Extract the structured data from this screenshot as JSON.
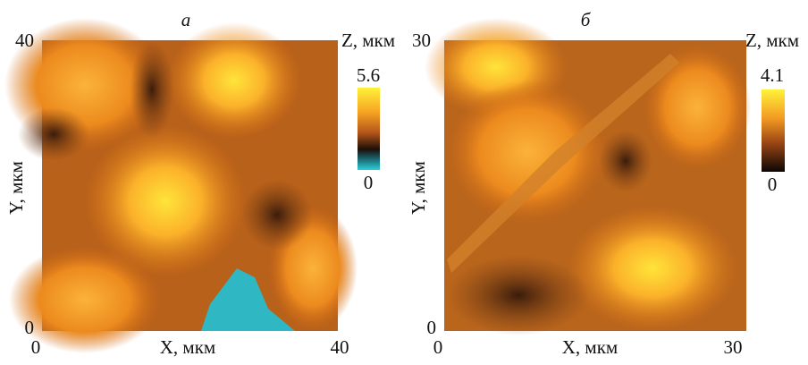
{
  "panels": [
    {
      "label": "а",
      "x_label": "X, мкм",
      "y_label": "Y, мкм",
      "x_ticks": [
        "0",
        "40"
      ],
      "y_ticks": [
        "0",
        "40"
      ],
      "colorbar": {
        "title": "Z, мкм",
        "max": "5.6",
        "min": "0"
      }
    },
    {
      "label": "б",
      "x_label": "X, мкм",
      "y_label": "Y, мкм",
      "x_ticks": [
        "0",
        "30"
      ],
      "y_ticks": [
        "0",
        "30"
      ],
      "colorbar": {
        "title": "Z, мкм",
        "max": "4.1",
        "min": "0"
      }
    }
  ]
}
